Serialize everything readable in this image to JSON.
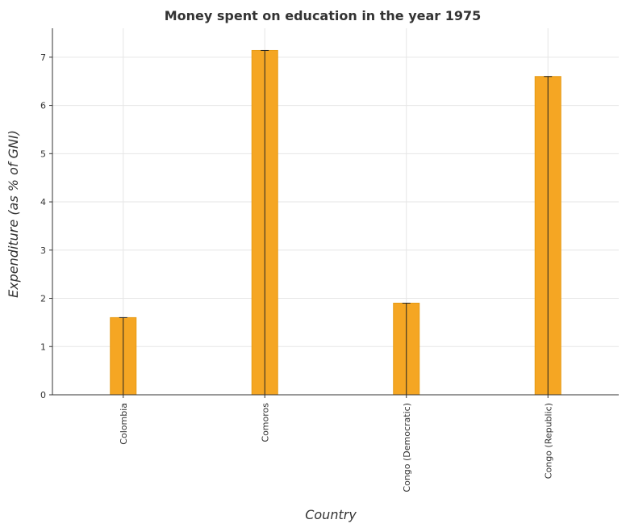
{
  "chart_data": {
    "type": "bar",
    "title": "Money spent on education in the year 1975",
    "xlabel": "Country",
    "ylabel": "Expenditure (as % of GNI)",
    "categories": [
      "Colombia",
      "Comoros",
      "Congo (Democratic)",
      "Congo (Republic)"
    ],
    "values": [
      1.6,
      7.14,
      1.9,
      6.6
    ],
    "ylim": [
      0,
      7.6
    ],
    "yticks": [
      "0",
      "1",
      "2",
      "3",
      "4",
      "5",
      "6",
      "7"
    ],
    "grid": true,
    "bar_color": "#f5a623",
    "bar_edge_color": "#e69a14",
    "error_bar_color": "#222222",
    "legend": "none"
  }
}
